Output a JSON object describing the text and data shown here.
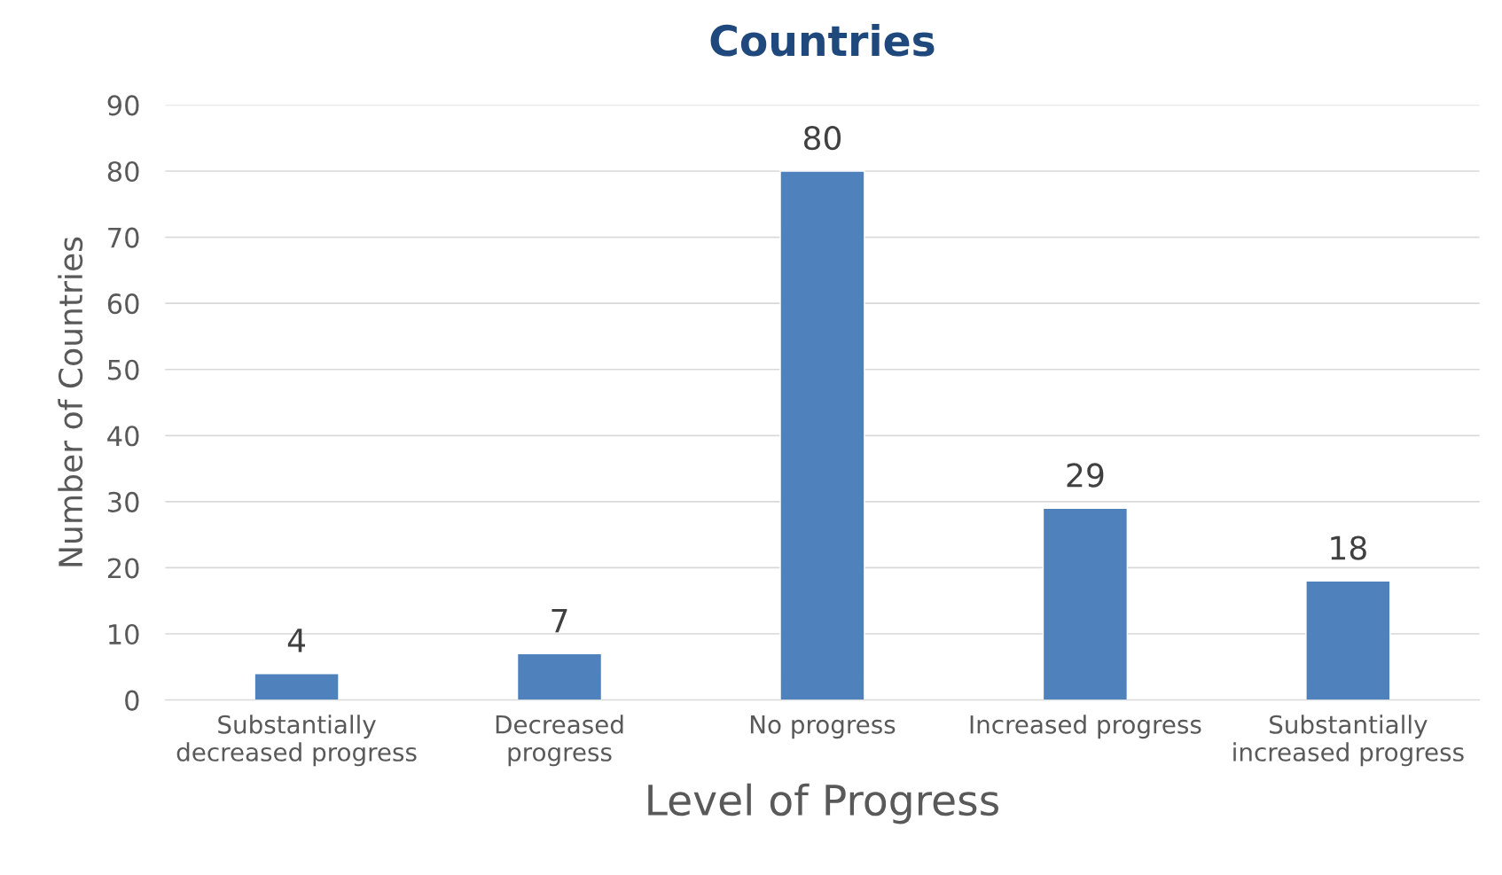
{
  "chart_data": {
    "type": "bar",
    "title": "Countries",
    "categories": [
      "Substantially\ndecreased progress",
      "Decreased\nprogress",
      "No progress",
      "Increased progress",
      "Substantially\nincreased progress"
    ],
    "values": [
      4,
      7,
      80,
      29,
      18
    ],
    "color": "#4f81bd",
    "xlabel": "Level of Progress",
    "ylabel": "Number of Countries",
    "ylim": [
      0,
      90
    ],
    "yticks": [
      0,
      10,
      20,
      30,
      40,
      50,
      60,
      70,
      80,
      90
    ],
    "grid": "y",
    "data_labels": true,
    "legend": false
  }
}
